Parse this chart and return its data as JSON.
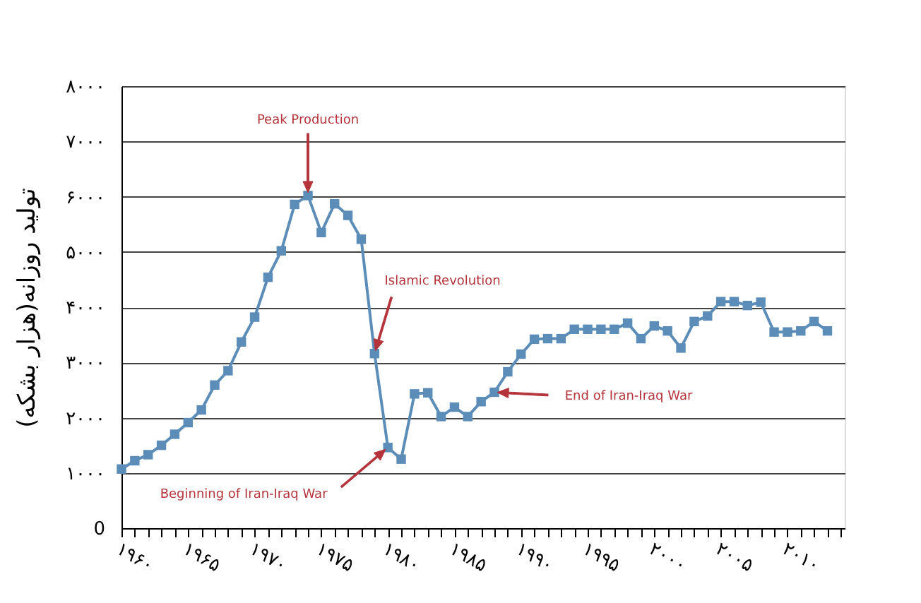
{
  "chart_data": {
    "type": "line",
    "ylabel": "تولید روزانه(هزار بشکه)",
    "x": [
      1960,
      1961,
      1962,
      1963,
      1964,
      1965,
      1966,
      1967,
      1968,
      1969,
      1970,
      1971,
      1972,
      1973,
      1974,
      1975,
      1976,
      1977,
      1978,
      1979,
      1980,
      1981,
      1982,
      1983,
      1984,
      1985,
      1986,
      1987,
      1988,
      1989,
      1990,
      1991,
      1992,
      1993,
      1994,
      1995,
      1996,
      1997,
      1998,
      1999,
      2000,
      2001,
      2002,
      2003,
      2004,
      2005,
      2006,
      2007,
      2008,
      2009,
      2010,
      2011,
      2012,
      2013
    ],
    "series": [
      {
        "color": "#5b8db8",
        "values": [
          1070,
          1220,
          1330,
          1500,
          1700,
          1910,
          2140,
          2590,
          2850,
          3370,
          3820,
          4540,
          5020,
          5860,
          6020,
          5350,
          5870,
          5660,
          5230,
          3160,
          1460,
          1250,
          2430,
          2450,
          2020,
          2190,
          2020,
          2290,
          2460,
          2830,
          3150,
          3420,
          3430,
          3430,
          3600,
          3600,
          3600,
          3600,
          3710,
          3430,
          3660,
          3570,
          3260,
          3740,
          3840,
          4100,
          4100,
          4030,
          4090,
          3550,
          3550,
          3570,
          3740,
          3570
        ]
      }
    ],
    "marker": "square",
    "line_style": "solid",
    "grid": "y",
    "xlim": [
      1960,
      2014.3
    ],
    "xticks": [
      {
        "value": 1960,
        "label": "۱۹۶۰"
      },
      {
        "value": 1961,
        "label": null
      },
      {
        "value": 1962,
        "label": null
      },
      {
        "value": 1963,
        "label": null
      },
      {
        "value": 1964,
        "label": null
      },
      {
        "value": 1965,
        "label": "۱۹۶۵"
      },
      {
        "value": 1966,
        "label": null
      },
      {
        "value": 1967,
        "label": null
      },
      {
        "value": 1968,
        "label": null
      },
      {
        "value": 1969,
        "label": null
      },
      {
        "value": 1970,
        "label": "۱۹۷۰"
      },
      {
        "value": 1971,
        "label": null
      },
      {
        "value": 1972,
        "label": null
      },
      {
        "value": 1973,
        "label": null
      },
      {
        "value": 1974,
        "label": null
      },
      {
        "value": 1975,
        "label": "۱۹۷۵"
      },
      {
        "value": 1976,
        "label": null
      },
      {
        "value": 1977,
        "label": null
      },
      {
        "value": 1978,
        "label": null
      },
      {
        "value": 1979,
        "label": null
      },
      {
        "value": 1980,
        "label": "۱۹۸۰"
      },
      {
        "value": 1981,
        "label": null
      },
      {
        "value": 1982,
        "label": null
      },
      {
        "value": 1983,
        "label": null
      },
      {
        "value": 1984,
        "label": null
      },
      {
        "value": 1985,
        "label": "۱۹۸۵"
      },
      {
        "value": 1986,
        "label": null
      },
      {
        "value": 1987,
        "label": null
      },
      {
        "value": 1988,
        "label": null
      },
      {
        "value": 1989,
        "label": null
      },
      {
        "value": 1990,
        "label": "۱۹۹۰"
      },
      {
        "value": 1991,
        "label": null
      },
      {
        "value": 1992,
        "label": null
      },
      {
        "value": 1993,
        "label": null
      },
      {
        "value": 1994,
        "label": null
      },
      {
        "value": 1995,
        "label": "۱۹۹۵"
      },
      {
        "value": 1996,
        "label": null
      },
      {
        "value": 1997,
        "label": null
      },
      {
        "value": 1998,
        "label": null
      },
      {
        "value": 1999,
        "label": null
      },
      {
        "value": 2000,
        "label": "۲۰۰۰"
      },
      {
        "value": 2001,
        "label": null
      },
      {
        "value": 2002,
        "label": null
      },
      {
        "value": 2003,
        "label": null
      },
      {
        "value": 2004,
        "label": null
      },
      {
        "value": 2005,
        "label": "۲۰۰۵"
      },
      {
        "value": 2006,
        "label": null
      },
      {
        "value": 2007,
        "label": null
      },
      {
        "value": 2008,
        "label": null
      },
      {
        "value": 2009,
        "label": null
      },
      {
        "value": 2010,
        "label": "۲۰۱۰"
      },
      {
        "value": 2011,
        "label": null
      },
      {
        "value": 2012,
        "label": null
      },
      {
        "value": 2013,
        "label": null
      },
      {
        "value": 2014,
        "label": null
      }
    ],
    "ylim": [
      0,
      8000
    ],
    "yticks": [
      0,
      {
        "value": 1000,
        "label": "۱۰۰۰"
      },
      {
        "value": 2000,
        "label": "۲۰۰۰"
      },
      {
        "value": 3000,
        "label": "۳۰۰۰"
      },
      {
        "value": 4000,
        "label": "۴۰۰۰"
      },
      {
        "value": 5000,
        "label": "۵۰۰۰"
      },
      {
        "value": 6000,
        "label": "۶۰۰۰"
      },
      {
        "value": 7000,
        "label": "۷۰۰۰"
      },
      {
        "value": 8000,
        "label": "۸۰۰۰"
      }
    ],
    "annotations": [
      "Peak Production",
      "Islamic Revolution",
      "Beginning of Iran-Iraq War",
      "End of Iran-Iraq War"
    ]
  }
}
